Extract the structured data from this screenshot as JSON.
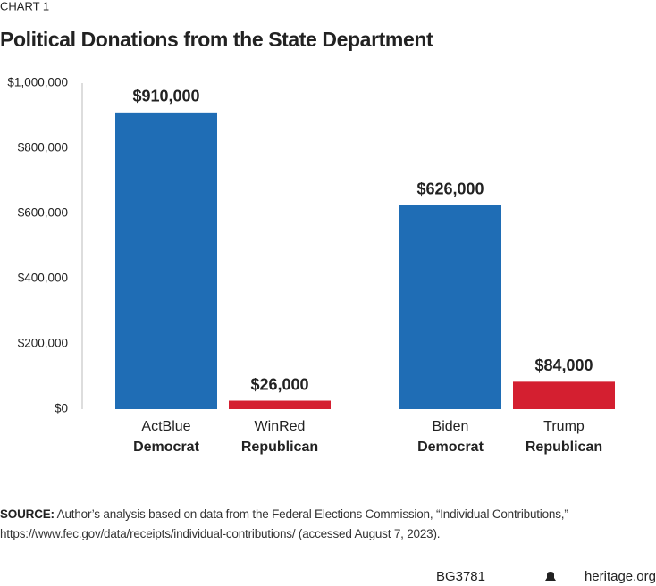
{
  "header": {
    "label": "CHART 1"
  },
  "chart_data": {
    "type": "bar",
    "title": "Political Donations from the State Department",
    "categories": [
      "ActBlue",
      "WinRed",
      "Biden",
      "Trump"
    ],
    "parties": [
      "Democrat",
      "Republican",
      "Democrat",
      "Republican"
    ],
    "values": [
      910000,
      26000,
      626000,
      84000
    ],
    "value_labels": [
      "$910,000",
      "$26,000",
      "$626,000",
      "$84,000"
    ],
    "colors": [
      "#1f6db5",
      "#d41f30",
      "#1f6db5",
      "#d41f30"
    ],
    "ylim": [
      0,
      1000000
    ],
    "yticks": [
      {
        "value": 0,
        "label": "$0"
      },
      {
        "value": 200000,
        "label": "$200,000"
      },
      {
        "value": 400000,
        "label": "$400,000"
      },
      {
        "value": 600000,
        "label": "$600,000"
      },
      {
        "value": 800000,
        "label": "$800,000"
      },
      {
        "value": 1000000,
        "label": "$1,000,000"
      }
    ],
    "grid": false
  },
  "source": {
    "label": "SOURCE:",
    "text": "Author’s analysis based on data from the Federal Elections Commission, “Individual Contributions,” https://www.fec.gov/data/receipts/individual-contributions/ (accessed August 7, 2023)."
  },
  "footer": {
    "code": "BG3781",
    "site": "heritage.org"
  }
}
